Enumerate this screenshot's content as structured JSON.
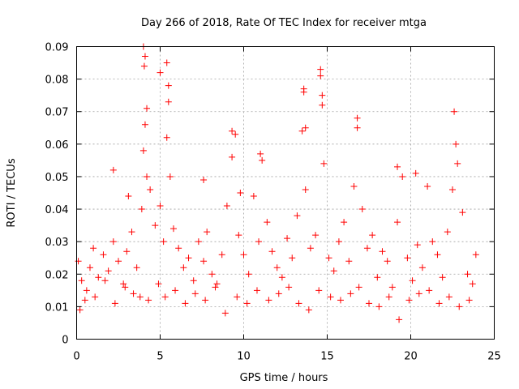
{
  "chart_data": {
    "type": "scatter",
    "title": "Day 266 of 2018, Rate Of TEC Index for receiver mtga",
    "xlabel": "GPS time / hours",
    "ylabel": "ROTI / TECUs",
    "xlim": [
      0,
      25
    ],
    "ylim": [
      0,
      0.09
    ],
    "xticks": [
      0,
      5,
      10,
      15,
      20,
      25
    ],
    "xtick_labels": [
      "0",
      "5",
      "10",
      "15",
      "20",
      "25"
    ],
    "yticks": [
      0,
      0.01,
      0.02,
      0.03,
      0.04,
      0.05,
      0.06,
      0.07,
      0.08,
      0.09
    ],
    "ytick_labels": [
      "0",
      "0.01",
      "0.02",
      "0.03",
      "0.04",
      "0.05",
      "0.06",
      "0.07",
      "0.08",
      "0.09"
    ],
    "grid": true,
    "marker": "+",
    "color": "#ff0000",
    "series": [
      {
        "name": "ROTI",
        "x": [
          0.1,
          0.3,
          0.5,
          0.8,
          1.0,
          1.3,
          1.6,
          1.9,
          2.2,
          2.5,
          2.8,
          3.0,
          3.3,
          3.6,
          3.9,
          4.0,
          4.1,
          4.2,
          4.4,
          4.7,
          5.0,
          5.2,
          5.4,
          5.5,
          5.6,
          5.8,
          6.1,
          6.4,
          6.7,
          7.0,
          7.3,
          7.6,
          7.8,
          8.1,
          8.4,
          8.7,
          9.0,
          9.3,
          9.5,
          9.7,
          10.0,
          10.3,
          10.6,
          10.9,
          11.1,
          11.4,
          11.7,
          12.0,
          12.3,
          12.6,
          12.9,
          13.2,
          13.5,
          13.6,
          13.7,
          14.0,
          14.3,
          14.6,
          14.7,
          14.8,
          15.1,
          15.4,
          15.7,
          16.0,
          16.3,
          16.6,
          16.8,
          17.1,
          17.4,
          17.7,
          18.0,
          18.3,
          18.6,
          18.9,
          19.2,
          19.5,
          19.8,
          20.1,
          20.4,
          20.7,
          21.0,
          21.3,
          21.6,
          21.9,
          22.2,
          22.5,
          22.8,
          23.1,
          23.4,
          23.7,
          23.9,
          0.2,
          0.6,
          1.1,
          1.7,
          2.3,
          2.9,
          3.4,
          3.8,
          4.3,
          4.9,
          5.3,
          5.9,
          6.5,
          7.1,
          7.7,
          8.3,
          8.9,
          9.6,
          10.2,
          10.8,
          11.5,
          12.1,
          12.7,
          13.3,
          13.9,
          14.5,
          15.2,
          15.8,
          16.4,
          16.9,
          17.5,
          18.1,
          18.7,
          19.3,
          19.9,
          20.5,
          21.1,
          21.7,
          22.3,
          22.9,
          23.5,
          4.0,
          4.05,
          4.1,
          5.4,
          5.5,
          14.6,
          14.7,
          13.6,
          13.7,
          22.6,
          22.7,
          16.8,
          9.3,
          11.0,
          2.2,
          19.2,
          20.3,
          5.0,
          4.2,
          7.6,
          3.1,
          9.8
        ],
        "y": [
          0.024,
          0.018,
          0.012,
          0.022,
          0.028,
          0.019,
          0.026,
          0.021,
          0.03,
          0.024,
          0.017,
          0.027,
          0.033,
          0.022,
          0.04,
          0.058,
          0.087,
          0.071,
          0.046,
          0.035,
          0.041,
          0.03,
          0.062,
          0.078,
          0.05,
          0.034,
          0.028,
          0.022,
          0.025,
          0.018,
          0.03,
          0.024,
          0.033,
          0.02,
          0.017,
          0.026,
          0.041,
          0.056,
          0.063,
          0.032,
          0.026,
          0.02,
          0.044,
          0.03,
          0.055,
          0.036,
          0.027,
          0.022,
          0.019,
          0.031,
          0.025,
          0.038,
          0.064,
          0.076,
          0.046,
          0.028,
          0.032,
          0.081,
          0.075,
          0.054,
          0.025,
          0.021,
          0.03,
          0.036,
          0.024,
          0.047,
          0.065,
          0.04,
          0.028,
          0.032,
          0.019,
          0.027,
          0.024,
          0.016,
          0.036,
          0.05,
          0.025,
          0.018,
          0.029,
          0.022,
          0.047,
          0.03,
          0.026,
          0.019,
          0.033,
          0.046,
          0.054,
          0.039,
          0.02,
          0.017,
          0.026,
          0.009,
          0.015,
          0.013,
          0.018,
          0.011,
          0.016,
          0.014,
          0.013,
          0.012,
          0.017,
          0.013,
          0.015,
          0.011,
          0.014,
          0.012,
          0.016,
          0.008,
          0.013,
          0.011,
          0.015,
          0.012,
          0.014,
          0.016,
          0.011,
          0.009,
          0.015,
          0.013,
          0.012,
          0.014,
          0.016,
          0.011,
          0.01,
          0.013,
          0.006,
          0.012,
          0.014,
          0.015,
          0.011,
          0.013,
          0.01,
          0.012,
          0.09,
          0.084,
          0.066,
          0.085,
          0.073,
          0.083,
          0.072,
          0.077,
          0.065,
          0.07,
          0.06,
          0.068,
          0.064,
          0.057,
          0.052,
          0.053,
          0.051,
          0.082,
          0.05,
          0.049,
          0.044,
          0.045
        ]
      }
    ]
  }
}
